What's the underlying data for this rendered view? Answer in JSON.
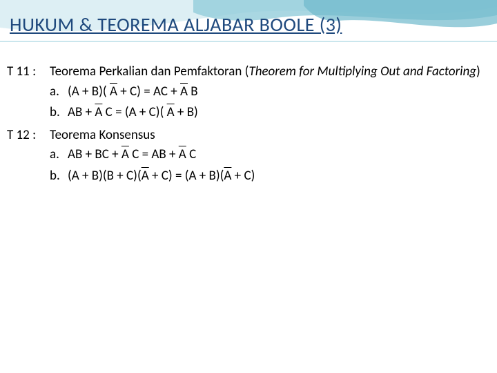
{
  "slide": {
    "title": "HUKUM & TEOREMA ALJABAR BOOLE (3)",
    "title_color": "#1f497d",
    "background_color": "#ffffff",
    "wave_colors": [
      "#94cddb",
      "#c7e5ec",
      "#6fb9cc"
    ],
    "body_fontsize": 19,
    "title_fontsize": 28
  },
  "theorems": [
    {
      "label": "T 11 :",
      "name_plain": "Teorema Perkalian dan Pemfaktoran (",
      "name_italic": "Theorem for Multiplying Out and Factoring",
      "name_close": ")",
      "items": [
        {
          "label": "a.",
          "segments": [
            {
              "t": "(A + B)( "
            },
            {
              "t": "A",
              "ov": true
            },
            {
              "t": " + C) = AC + "
            },
            {
              "t": "A",
              "ov": true
            },
            {
              "t": " B"
            }
          ]
        },
        {
          "label": "b.",
          "segments": [
            {
              "t": "AB + "
            },
            {
              "t": "A",
              "ov": true
            },
            {
              "t": " C = (A + C)( "
            },
            {
              "t": "A",
              "ov": true
            },
            {
              "t": " + B)"
            }
          ]
        }
      ]
    },
    {
      "label": "T 12 :",
      "name_plain": "Teorema Konsensus",
      "name_italic": "",
      "name_close": "",
      "items": [
        {
          "label": "a.",
          "segments": [
            {
              "t": "AB + BC + "
            },
            {
              "t": "A",
              "ov": true
            },
            {
              "t": " C = AB + "
            },
            {
              "t": "A",
              "ov": true
            },
            {
              "t": " C"
            }
          ]
        },
        {
          "label": "b.",
          "segments": [
            {
              "t": "(A + B)(B + C)("
            },
            {
              "t": "A",
              "ov": true
            },
            {
              "t": " + C) = (A + B)("
            },
            {
              "t": "A",
              "ov": true
            },
            {
              "t": " + C)"
            }
          ]
        }
      ]
    }
  ]
}
